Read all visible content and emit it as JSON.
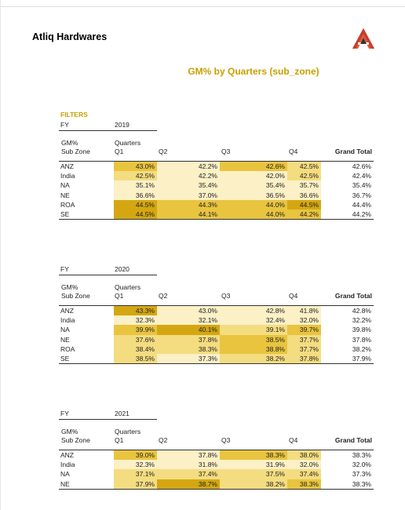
{
  "header": {
    "company": "Atliq Hardwares",
    "logo_color": "#e8573a"
  },
  "report": {
    "title": "GM%  by Quarters (sub_zone)",
    "filters_label": "FILTERS"
  },
  "labels": {
    "fy": "FY",
    "gm": "GM%",
    "sub_zone": "Sub Zone",
    "quarters": "Quarters",
    "q1": "Q1",
    "q2": "Q2",
    "q3": "Q3",
    "q4": "Q4",
    "grand_total": "Grand Total"
  },
  "colors": {
    "very_high": "#d4a712",
    "high": "#e8c43f",
    "mid": "#f4dc80",
    "low": "#fbf0c6"
  },
  "tables": [
    {
      "fy": "2019",
      "rows": [
        {
          "zone": "ANZ",
          "q1": "43.0%",
          "q2": "42.2%",
          "q3": "42.6%",
          "q4": "42.5%",
          "total": "42.6%",
          "shades": [
            "high",
            "low",
            "high",
            "mid"
          ]
        },
        {
          "zone": "India",
          "q1": "42.5%",
          "q2": "42.2%",
          "q3": "42.0%",
          "q4": "42.5%",
          "total": "42.4%",
          "shades": [
            "mid",
            "low",
            "low",
            "mid"
          ]
        },
        {
          "zone": "NA",
          "q1": "35.1%",
          "q2": "35.4%",
          "q3": "35.4%",
          "q4": "35.7%",
          "total": "35.4%",
          "shades": [
            "low",
            "low",
            "low",
            "low"
          ]
        },
        {
          "zone": "NE",
          "q1": "36.6%",
          "q2": "37.0%",
          "q3": "36.5%",
          "q4": "36.6%",
          "total": "36.7%",
          "shades": [
            "low",
            "low",
            "low",
            "low"
          ]
        },
        {
          "zone": "ROA",
          "q1": "44.5%",
          "q2": "44.3%",
          "q3": "44.0%",
          "q4": "44.5%",
          "total": "44.4%",
          "shades": [
            "very_high",
            "high",
            "high",
            "very_high"
          ]
        },
        {
          "zone": "SE",
          "q1": "44.5%",
          "q2": "44.1%",
          "q3": "44.0%",
          "q4": "44.2%",
          "total": "44.2%",
          "shades": [
            "very_high",
            "high",
            "high",
            "high"
          ]
        }
      ]
    },
    {
      "fy": "2020",
      "rows": [
        {
          "zone": "ANZ",
          "q1": "43.3%",
          "q2": "43.0%",
          "q3": "42.8%",
          "q4": "41.8%",
          "total": "42.8%",
          "shades": [
            "very_high",
            "low",
            "low",
            "low"
          ]
        },
        {
          "zone": "India",
          "q1": "32.3%",
          "q2": "32.1%",
          "q3": "32.4%",
          "q4": "32.0%",
          "total": "32.2%",
          "shades": [
            "low",
            "low",
            "low",
            "low"
          ]
        },
        {
          "zone": "NA",
          "q1": "39.9%",
          "q2": "40.1%",
          "q3": "39.1%",
          "q4": "39.7%",
          "total": "39.8%",
          "shades": [
            "high",
            "very_high",
            "mid",
            "high"
          ]
        },
        {
          "zone": "NE",
          "q1": "37.6%",
          "q2": "37.8%",
          "q3": "38.5%",
          "q4": "37.7%",
          "total": "37.8%",
          "shades": [
            "mid",
            "mid",
            "high",
            "mid"
          ]
        },
        {
          "zone": "ROA",
          "q1": "38.4%",
          "q2": "38.3%",
          "q3": "38.8%",
          "q4": "37.7%",
          "total": "38.2%",
          "shades": [
            "mid",
            "mid",
            "high",
            "mid"
          ]
        },
        {
          "zone": "SE",
          "q1": "38.5%",
          "q2": "37.3%",
          "q3": "38.2%",
          "q4": "37.8%",
          "total": "37.9%",
          "shades": [
            "mid",
            "low",
            "mid",
            "mid"
          ]
        }
      ]
    },
    {
      "fy": "2021",
      "rows": [
        {
          "zone": "ANZ",
          "q1": "39.0%",
          "q2": "37.8%",
          "q3": "38.3%",
          "q4": "38.0%",
          "total": "38.3%",
          "shades": [
            "high",
            "low",
            "high",
            "mid"
          ]
        },
        {
          "zone": "India",
          "q1": "32.3%",
          "q2": "31.8%",
          "q3": "31.9%",
          "q4": "32.0%",
          "total": "32.0%",
          "shades": [
            "low",
            "low",
            "low",
            "low"
          ]
        },
        {
          "zone": "NA",
          "q1": "37.1%",
          "q2": "37.4%",
          "q3": "37.5%",
          "q4": "37.4%",
          "total": "37.3%",
          "shades": [
            "mid",
            "mid",
            "mid",
            "mid"
          ]
        },
        {
          "zone": "NE",
          "q1": "37.9%",
          "q2": "38.7%",
          "q3": "38.2%",
          "q4": "38.3%",
          "total": "38.3%",
          "shades": [
            "mid",
            "very_high",
            "mid",
            "high"
          ]
        }
      ]
    }
  ]
}
